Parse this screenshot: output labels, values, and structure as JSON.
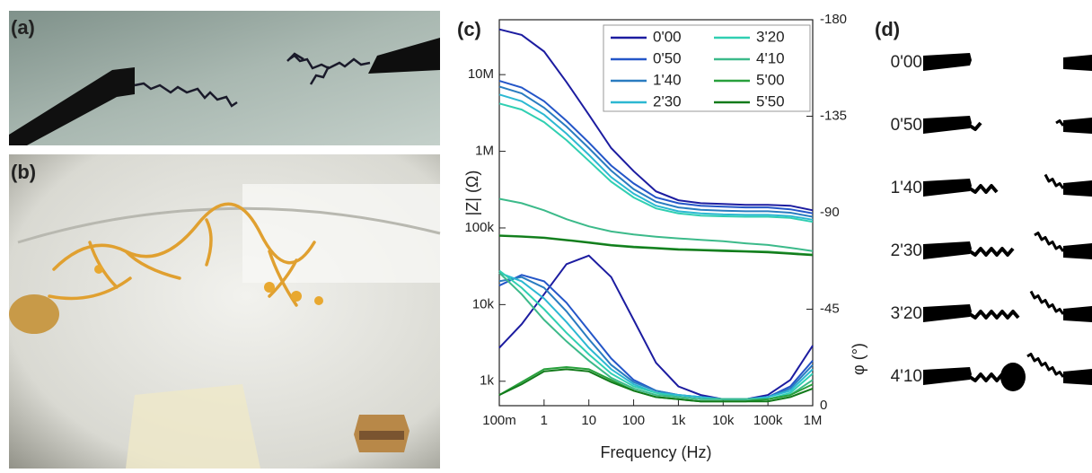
{
  "panel_labels": [
    "(a)",
    "(b)",
    "(c)",
    "(d)"
  ],
  "panel_d": {
    "labels": [
      "0'00",
      "0'50",
      "1'40",
      "2'30",
      "3'20",
      "4'10"
    ]
  },
  "chart_data": {
    "type": "line",
    "xlabel": "Frequency (Hz)",
    "ylabel": "|Z| (Ω)",
    "y2label": "φ (°)",
    "xscale": "log",
    "yscale": "log",
    "x": [
      0.1,
      0.316,
      1,
      3.16,
      10,
      31.6,
      100,
      316,
      1000,
      3160,
      10000,
      31600,
      100000,
      316000,
      1000000
    ],
    "xlim": [
      0.1,
      1000000
    ],
    "xticks": [
      {
        "value": 0.1,
        "label": "100m"
      },
      1,
      10,
      100,
      {
        "value": 1000,
        "label": "1k"
      },
      {
        "value": 10000,
        "label": "10k"
      },
      {
        "value": 100000,
        "label": "100k"
      },
      {
        "value": 1000000,
        "label": "1M"
      }
    ],
    "ylim": [
      480,
      52000000
    ],
    "yticks": [
      {
        "value": 1000,
        "label": "1k"
      },
      {
        "value": 10000,
        "label": "10k"
      },
      {
        "value": 100000,
        "label": "100k"
      },
      {
        "value": 1000000,
        "label": "1M"
      },
      {
        "value": 10000000,
        "label": "10M"
      }
    ],
    "y2lim": [
      0,
      -180
    ],
    "y2ticks": [
      0,
      -45,
      -90,
      -135,
      -180
    ],
    "legend_columns": 2,
    "series": [
      {
        "name": "0'00",
        "color": "#1c1ca0",
        "values": [
          39000000,
          33000000,
          20000000,
          8000000,
          3000000,
          1100000,
          550000,
          300000,
          230000,
          210000,
          205000,
          200000,
          200000,
          195000,
          170000
        ]
      },
      {
        "name": "0'50",
        "color": "#2456c8",
        "values": [
          8300000,
          6800000,
          4500000,
          2500000,
          1300000,
          650000,
          380000,
          250000,
          210000,
          195000,
          190000,
          185000,
          185000,
          175000,
          155000
        ]
      },
      {
        "name": "1'40",
        "color": "#2a7cc0",
        "values": [
          7000000,
          5700000,
          3700000,
          2100000,
          1100000,
          560000,
          320000,
          220000,
          185000,
          172000,
          168000,
          165000,
          165000,
          158000,
          140000
        ]
      },
      {
        "name": "2'30",
        "color": "#2cb8d2",
        "values": [
          5500000,
          4500000,
          3000000,
          1700000,
          900000,
          460000,
          280000,
          195000,
          165000,
          155000,
          150000,
          148000,
          148000,
          143000,
          128000
        ]
      },
      {
        "name": "3'20",
        "color": "#30cfb2",
        "values": [
          4200000,
          3500000,
          2400000,
          1400000,
          750000,
          400000,
          250000,
          180000,
          155000,
          145000,
          142000,
          140000,
          140000,
          135000,
          120000
        ]
      },
      {
        "name": "4'10",
        "color": "#3cba8a",
        "values": [
          240000,
          210000,
          170000,
          130000,
          105000,
          90000,
          82000,
          77000,
          73000,
          70000,
          67000,
          63000,
          60000,
          55000,
          50000
        ]
      },
      {
        "name": "5'00",
        "color": "#28a03c",
        "values": [
          80000,
          78000,
          75000,
          70000,
          65000,
          60000,
          57000,
          55000,
          53000,
          52000,
          51000,
          50000,
          49000,
          47000,
          45000
        ]
      },
      {
        "name": "5'50",
        "color": "#127a1a",
        "values": [
          79000,
          77000,
          74000,
          69000,
          64000,
          59000,
          56000,
          54000,
          52000,
          51000,
          50000,
          49000,
          48000,
          46000,
          44000
        ]
      },
      {
        "axis": "y2",
        "color": "#1c1ca0",
        "values": [
          -27,
          -38,
          -52,
          -66,
          -70,
          -60,
          -40,
          -20,
          -9,
          -5,
          -3,
          -3,
          -5,
          -12,
          -28
        ]
      },
      {
        "axis": "y2",
        "color": "#2456c8",
        "values": [
          -56,
          -61,
          -58,
          -48,
          -35,
          -22,
          -12,
          -7,
          -5,
          -4,
          -3,
          -3,
          -4,
          -9,
          -21
        ]
      },
      {
        "axis": "y2",
        "color": "#2a7cc0",
        "values": [
          -58,
          -60,
          -55,
          -44,
          -31,
          -19,
          -11,
          -7,
          -5,
          -4,
          -3,
          -3,
          -4,
          -8,
          -19
        ]
      },
      {
        "axis": "y2",
        "color": "#2cb8d2",
        "values": [
          -62,
          -58,
          -50,
          -39,
          -27,
          -17,
          -10,
          -6,
          -5,
          -4,
          -3,
          -3,
          -4,
          -7,
          -17
        ]
      },
      {
        "axis": "y2",
        "color": "#30cfb2",
        "values": [
          -63,
          -55,
          -45,
          -34,
          -24,
          -15,
          -9,
          -6,
          -4,
          -3,
          -3,
          -3,
          -3,
          -6,
          -15
        ]
      },
      {
        "axis": "y2",
        "color": "#3cba8a",
        "values": [
          -62,
          -52,
          -40,
          -30,
          -21,
          -13,
          -8,
          -5,
          -4,
          -3,
          -3,
          -3,
          -3,
          -5,
          -12
        ]
      },
      {
        "axis": "y2",
        "color": "#28a03c",
        "values": [
          -5,
          -11,
          -17,
          -18,
          -17,
          -12,
          -7,
          -4,
          -3,
          -2,
          -2,
          -2,
          -3,
          -5,
          -10
        ]
      },
      {
        "axis": "y2",
        "color": "#127a1a",
        "values": [
          -5,
          -10,
          -16,
          -17,
          -16,
          -11,
          -7,
          -4,
          -3,
          -2,
          -2,
          -2,
          -2,
          -4,
          -8
        ]
      }
    ]
  }
}
